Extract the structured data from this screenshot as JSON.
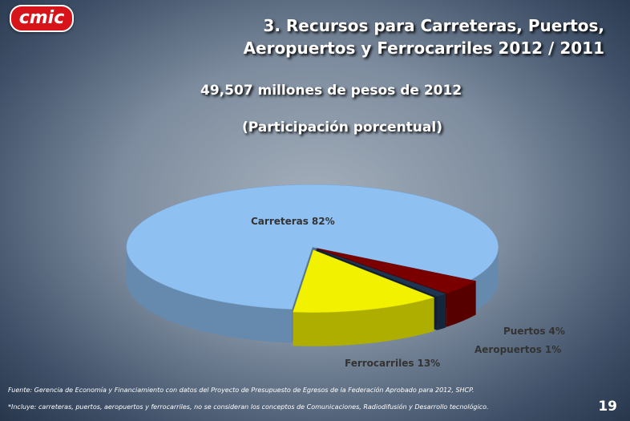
{
  "logo": "cmic",
  "chart_data": {
    "type": "pie",
    "title": "3. Recursos para Carreteras, Puertos, Aeropuertos y Ferrocarriles 2012 / 2011",
    "subtitle": [
      "49,507 millones de pesos de 2012",
      "(Participación porcentual)"
    ],
    "categories": [
      "Puertos",
      "Aeropuertos",
      "Ferrocarriles",
      "Carreteras"
    ],
    "values": [
      4,
      1,
      13,
      82
    ],
    "value_labels": [
      "4%",
      "1%",
      "13%",
      "82%"
    ],
    "colors": [
      "#7a0000",
      "#1e3552",
      "#f2f200",
      "#8fc0f2"
    ]
  },
  "footnotes": [
    "Fuente: Gerencia de Economía y Financiamiento con datos del Proyecto de Presupuesto de Egresos de la Federación Aprobado para 2012, SHCP.",
    "*Incluye: carreteras, puertos, aeropuertos y ferrocarriles, no se consideran los conceptos de Comunicaciones, Radiodifusión y Desarrollo tecnológico."
  ],
  "page_number": 19
}
